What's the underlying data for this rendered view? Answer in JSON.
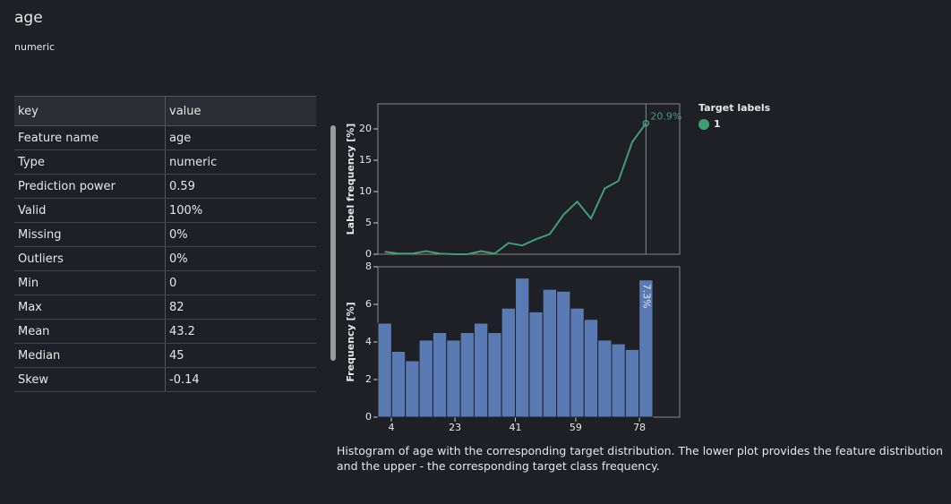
{
  "header": {
    "title": "age",
    "subtitle": "numeric"
  },
  "table": {
    "columns": [
      "key",
      "value"
    ],
    "rows": [
      [
        "Feature name",
        "age"
      ],
      [
        "Type",
        "numeric"
      ],
      [
        "Prediction power",
        "0.59"
      ],
      [
        "Valid",
        "100%"
      ],
      [
        "Missing",
        "0%"
      ],
      [
        "Outliers",
        "0%"
      ],
      [
        "Min",
        "0"
      ],
      [
        "Max",
        "82"
      ],
      [
        "Mean",
        "43.2"
      ],
      [
        "Median",
        "45"
      ],
      [
        "Skew",
        "-0.14"
      ]
    ]
  },
  "chart_data": [
    {
      "type": "line",
      "ylabel": "Label frequency [%]",
      "legend_title": "Target labels",
      "x": [
        2.05,
        6.15,
        10.25,
        14.35,
        18.45,
        22.55,
        26.65,
        30.75,
        34.85,
        38.95,
        43.05,
        47.15,
        51.25,
        55.35,
        59.45,
        63.55,
        67.65,
        71.75,
        75.85,
        79.95
      ],
      "series": [
        {
          "name": "1",
          "color": "#3f9e72",
          "values": [
            0.4,
            0.1,
            0.1,
            0.5,
            0.1,
            0,
            0,
            0.5,
            0.1,
            1.8,
            1.4,
            2.4,
            3.2,
            6.3,
            8.4,
            5.7,
            10.5,
            11.7,
            17.9,
            20.9
          ],
          "value_labels": [
            null,
            null,
            null,
            null,
            null,
            null,
            null,
            null,
            null,
            null,
            null,
            null,
            null,
            null,
            null,
            null,
            null,
            null,
            null,
            "20.9%"
          ]
        }
      ],
      "xlim": [
        0,
        90
      ],
      "ylim": [
        0,
        24
      ],
      "yticks": [
        0,
        5,
        10,
        15,
        20
      ]
    },
    {
      "type": "histogram",
      "ylabel": "Frequency [%]",
      "color": "#5a7ab3",
      "bins": [
        0,
        4.1,
        8.2,
        12.3,
        16.4,
        20.5,
        24.6,
        28.7,
        32.8,
        36.9,
        41,
        45.1,
        49.2,
        53.3,
        57.4,
        61.5,
        65.6,
        69.7,
        73.8,
        77.9,
        82
      ],
      "values": [
        5.0,
        3.5,
        3.0,
        4.1,
        4.5,
        4.1,
        4.5,
        5.0,
        4.5,
        5.8,
        7.4,
        5.6,
        6.8,
        6.7,
        5.8,
        5.2,
        4.1,
        3.9,
        3.6,
        7.3
      ],
      "value_labels": [
        null,
        null,
        null,
        null,
        null,
        null,
        null,
        null,
        null,
        null,
        null,
        null,
        null,
        null,
        null,
        null,
        null,
        null,
        null,
        "7.3%"
      ],
      "xlim": [
        0,
        90
      ],
      "ylim": [
        0,
        8
      ],
      "xticks": [
        4,
        23,
        41,
        59,
        78
      ],
      "yticks": [
        0,
        2,
        4,
        6,
        8
      ]
    }
  ],
  "caption": "Histogram of age with the corresponding target distribution. The lower plot provides the feature distribution and the upper - the corresponding target class frequency."
}
